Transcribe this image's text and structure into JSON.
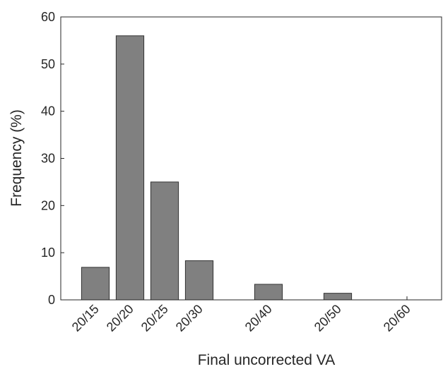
{
  "chart_data": {
    "type": "bar",
    "xlabel": "Final uncorrected VA",
    "ylabel": "Frequency (%)",
    "categories": [
      "20/15",
      "20/20",
      "20/25",
      "20/30",
      null,
      "20/40",
      null,
      "20/50",
      null,
      "20/60"
    ],
    "values": [
      6.9,
      56,
      25,
      8.3,
      null,
      3.3,
      null,
      1.4,
      null,
      0
    ],
    "color": "#808080",
    "ylim": [
      0,
      60
    ],
    "yticks": [
      0,
      10,
      20,
      30,
      40,
      50,
      60
    ]
  }
}
